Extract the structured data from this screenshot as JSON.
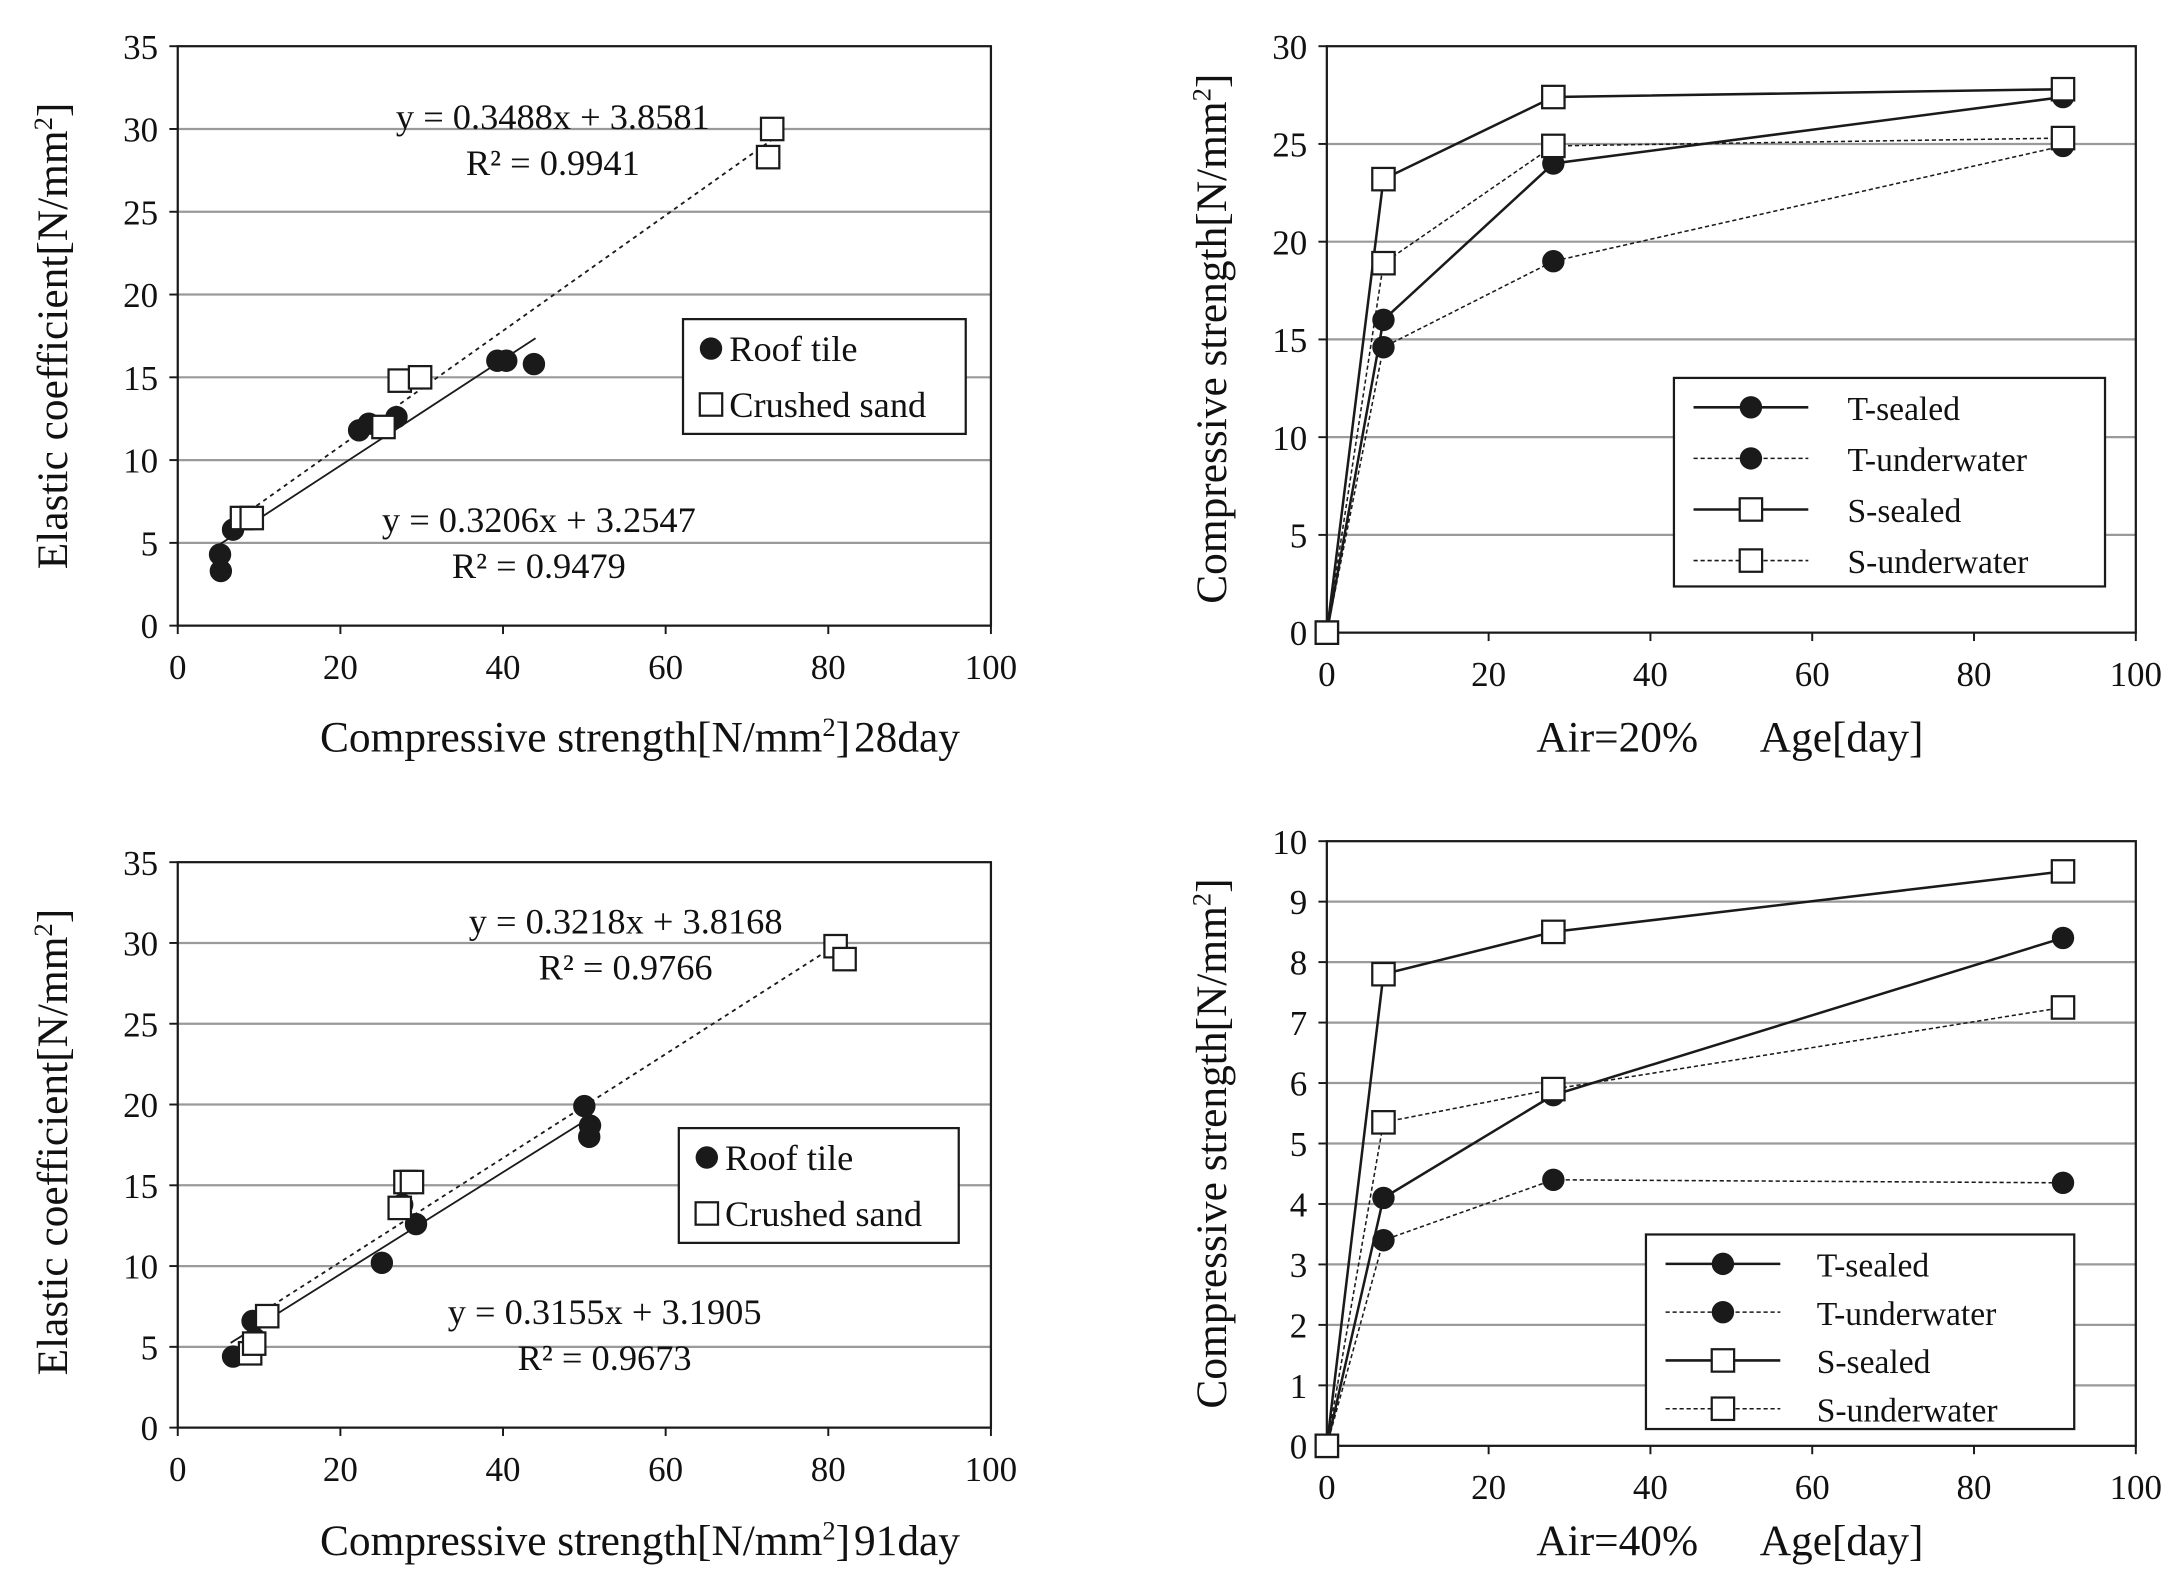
{
  "chart_data": [
    {
      "type": "scatter",
      "panel": "top-left",
      "title": "",
      "xlabel": "Compressive strength[N/mm²]",
      "xlabel_main": "Compressive strength[N/mm",
      "xlabel_sup": "2",
      "xlabel_close": "]",
      "xlabel_suffix": "28day",
      "ylabel": "Elastic coefficient[N/mm²]",
      "ylabel_main": "Elastic coefficient[N/mm",
      "ylabel_sup": "2",
      "ylabel_close": "]",
      "xlim": [
        0,
        100
      ],
      "ylim": [
        0,
        35
      ],
      "xticks": [
        0,
        20,
        40,
        60,
        80,
        100
      ],
      "yticks": [
        0,
        5,
        10,
        15,
        20,
        25,
        30,
        35
      ],
      "grid": "horizontal",
      "legend_position": "right-middle",
      "series": [
        {
          "name": "Roof tile",
          "marker": "filled-circle",
          "points": [
            [
              5.2,
              4.3
            ],
            [
              5.3,
              3.3
            ],
            [
              6.8,
              5.8
            ],
            [
              22.3,
              11.8
            ],
            [
              23.5,
              12.2
            ],
            [
              26.9,
              12.6
            ],
            [
              39.3,
              16.0
            ],
            [
              40.4,
              16.0
            ],
            [
              43.8,
              15.8
            ]
          ],
          "trendline": {
            "intercept": 3.2547,
            "slope": 0.3206,
            "x_range": [
              5,
              44
            ],
            "equation": "y = 0.3206x + 3.2547",
            "r2": "R² = 0.9479"
          }
        },
        {
          "name": "Crushed sand",
          "marker": "open-square",
          "points": [
            [
              7.9,
              6.5
            ],
            [
              9.1,
              6.5
            ],
            [
              25.3,
              12.0
            ],
            [
              27.3,
              14.8
            ],
            [
              29.8,
              15.0
            ],
            [
              72.6,
              28.3
            ],
            [
              73.1,
              30.0
            ]
          ],
          "trendline": {
            "intercept": 3.8581,
            "slope": 0.3488,
            "x_range": [
              8,
              73
            ],
            "equation": "y = 0.3488x + 3.8581",
            "r2": "R² = 0.9941"
          }
        }
      ]
    },
    {
      "type": "line",
      "panel": "top-right",
      "title": "",
      "xlabel": "Air=20%     Age[day]",
      "xlabel_prefix": "Air=20%",
      "xlabel_main": "Age[day]",
      "ylabel": "Compressive strength[N/mm²]",
      "ylabel_main": "Compressive strength[N/mm",
      "ylabel_sup": "2",
      "ylabel_close": "]",
      "xlim": [
        0,
        100
      ],
      "ylim": [
        0,
        30
      ],
      "xticks": [
        0,
        20,
        40,
        60,
        80,
        100
      ],
      "yticks": [
        0,
        5,
        10,
        15,
        20,
        25,
        30
      ],
      "grid": "horizontal",
      "legend_position": "bottom-right",
      "x": [
        0,
        7,
        28,
        91
      ],
      "series": [
        {
          "name": "T-sealed",
          "marker": "filled-circle",
          "line": "solid",
          "values": [
            0,
            16.0,
            24.0,
            27.4
          ]
        },
        {
          "name": "T-underwater",
          "marker": "filled-circle",
          "line": "dotted",
          "values": [
            0,
            14.6,
            19.0,
            24.9
          ]
        },
        {
          "name": "S-sealed",
          "marker": "open-square",
          "line": "solid",
          "values": [
            0,
            23.2,
            27.4,
            27.8
          ]
        },
        {
          "name": "S-underwater",
          "marker": "open-square",
          "line": "dotted",
          "values": [
            0,
            18.9,
            24.9,
            25.3
          ]
        }
      ]
    },
    {
      "type": "scatter",
      "panel": "bottom-left",
      "title": "",
      "xlabel": "Compressive strength[N/mm²]",
      "xlabel_main": "Compressive strength[N/mm",
      "xlabel_sup": "2",
      "xlabel_close": "]",
      "xlabel_suffix": "91day",
      "ylabel": "Elastic coefficient[N/mm²]",
      "ylabel_main": "Elastic coefficient[N/mm",
      "ylabel_sup": "2",
      "ylabel_close": "]",
      "xlim": [
        0,
        100
      ],
      "ylim": [
        0,
        35
      ],
      "xticks": [
        0,
        20,
        40,
        60,
        80,
        100
      ],
      "yticks": [
        0,
        5,
        10,
        15,
        20,
        25,
        30,
        35
      ],
      "grid": "horizontal",
      "legend_position": "right-middle",
      "series": [
        {
          "name": "Roof tile",
          "marker": "filled-circle",
          "points": [
            [
              6.8,
              4.4
            ],
            [
              9.2,
              6.6
            ],
            [
              9.5,
              5.5
            ],
            [
              25.1,
              10.2
            ],
            [
              27.6,
              13.8
            ],
            [
              29.3,
              12.6
            ],
            [
              50.0,
              19.9
            ],
            [
              50.7,
              18.7
            ],
            [
              50.6,
              18.0
            ]
          ],
          "trendline": {
            "intercept": 3.1905,
            "slope": 0.3155,
            "x_range": [
              6.5,
              51
            ],
            "equation": "y = 0.3155x + 3.1905",
            "r2": "R² = 0.9673"
          }
        },
        {
          "name": "Crushed sand",
          "marker": "open-square",
          "points": [
            [
              8.9,
              4.6
            ],
            [
              9.4,
              5.2
            ],
            [
              11.0,
              6.9
            ],
            [
              27.3,
              13.6
            ],
            [
              28.0,
              15.2
            ],
            [
              28.8,
              15.2
            ],
            [
              80.9,
              29.8
            ],
            [
              82.0,
              29.0
            ]
          ],
          "trendline": {
            "intercept": 3.8168,
            "slope": 0.3218,
            "x_range": [
              9,
              81
            ],
            "equation": "y = 0.3218x + 3.8168",
            "r2": "R² = 0.9766"
          }
        }
      ]
    },
    {
      "type": "line",
      "panel": "bottom-right",
      "title": "",
      "xlabel": "Air=40%     Age[day]",
      "xlabel_prefix": "Air=40%",
      "xlabel_main": "Age[day]",
      "ylabel": "Compressive strength[N/mm²]",
      "ylabel_main": "Compressive strength[N/mm",
      "ylabel_sup": "2",
      "ylabel_close": "]",
      "xlim": [
        0,
        100
      ],
      "ylim": [
        0,
        10
      ],
      "xticks": [
        0,
        20,
        40,
        60,
        80,
        100
      ],
      "yticks": [
        0,
        1,
        2,
        3,
        4,
        5,
        6,
        7,
        8,
        9,
        10
      ],
      "grid": "horizontal",
      "legend_position": "bottom-right",
      "x": [
        0,
        7,
        28,
        91
      ],
      "series": [
        {
          "name": "T-sealed",
          "marker": "filled-circle",
          "line": "solid",
          "values": [
            0,
            4.1,
            5.8,
            8.4
          ]
        },
        {
          "name": "T-underwater",
          "marker": "filled-circle",
          "line": "dotted",
          "values": [
            0,
            3.4,
            4.4,
            4.35
          ]
        },
        {
          "name": "S-sealed",
          "marker": "open-square",
          "line": "solid",
          "values": [
            0,
            7.8,
            8.5,
            9.5
          ]
        },
        {
          "name": "S-underwater",
          "marker": "open-square",
          "line": "dotted",
          "values": [
            0,
            5.35,
            5.9,
            7.25
          ]
        }
      ]
    }
  ]
}
